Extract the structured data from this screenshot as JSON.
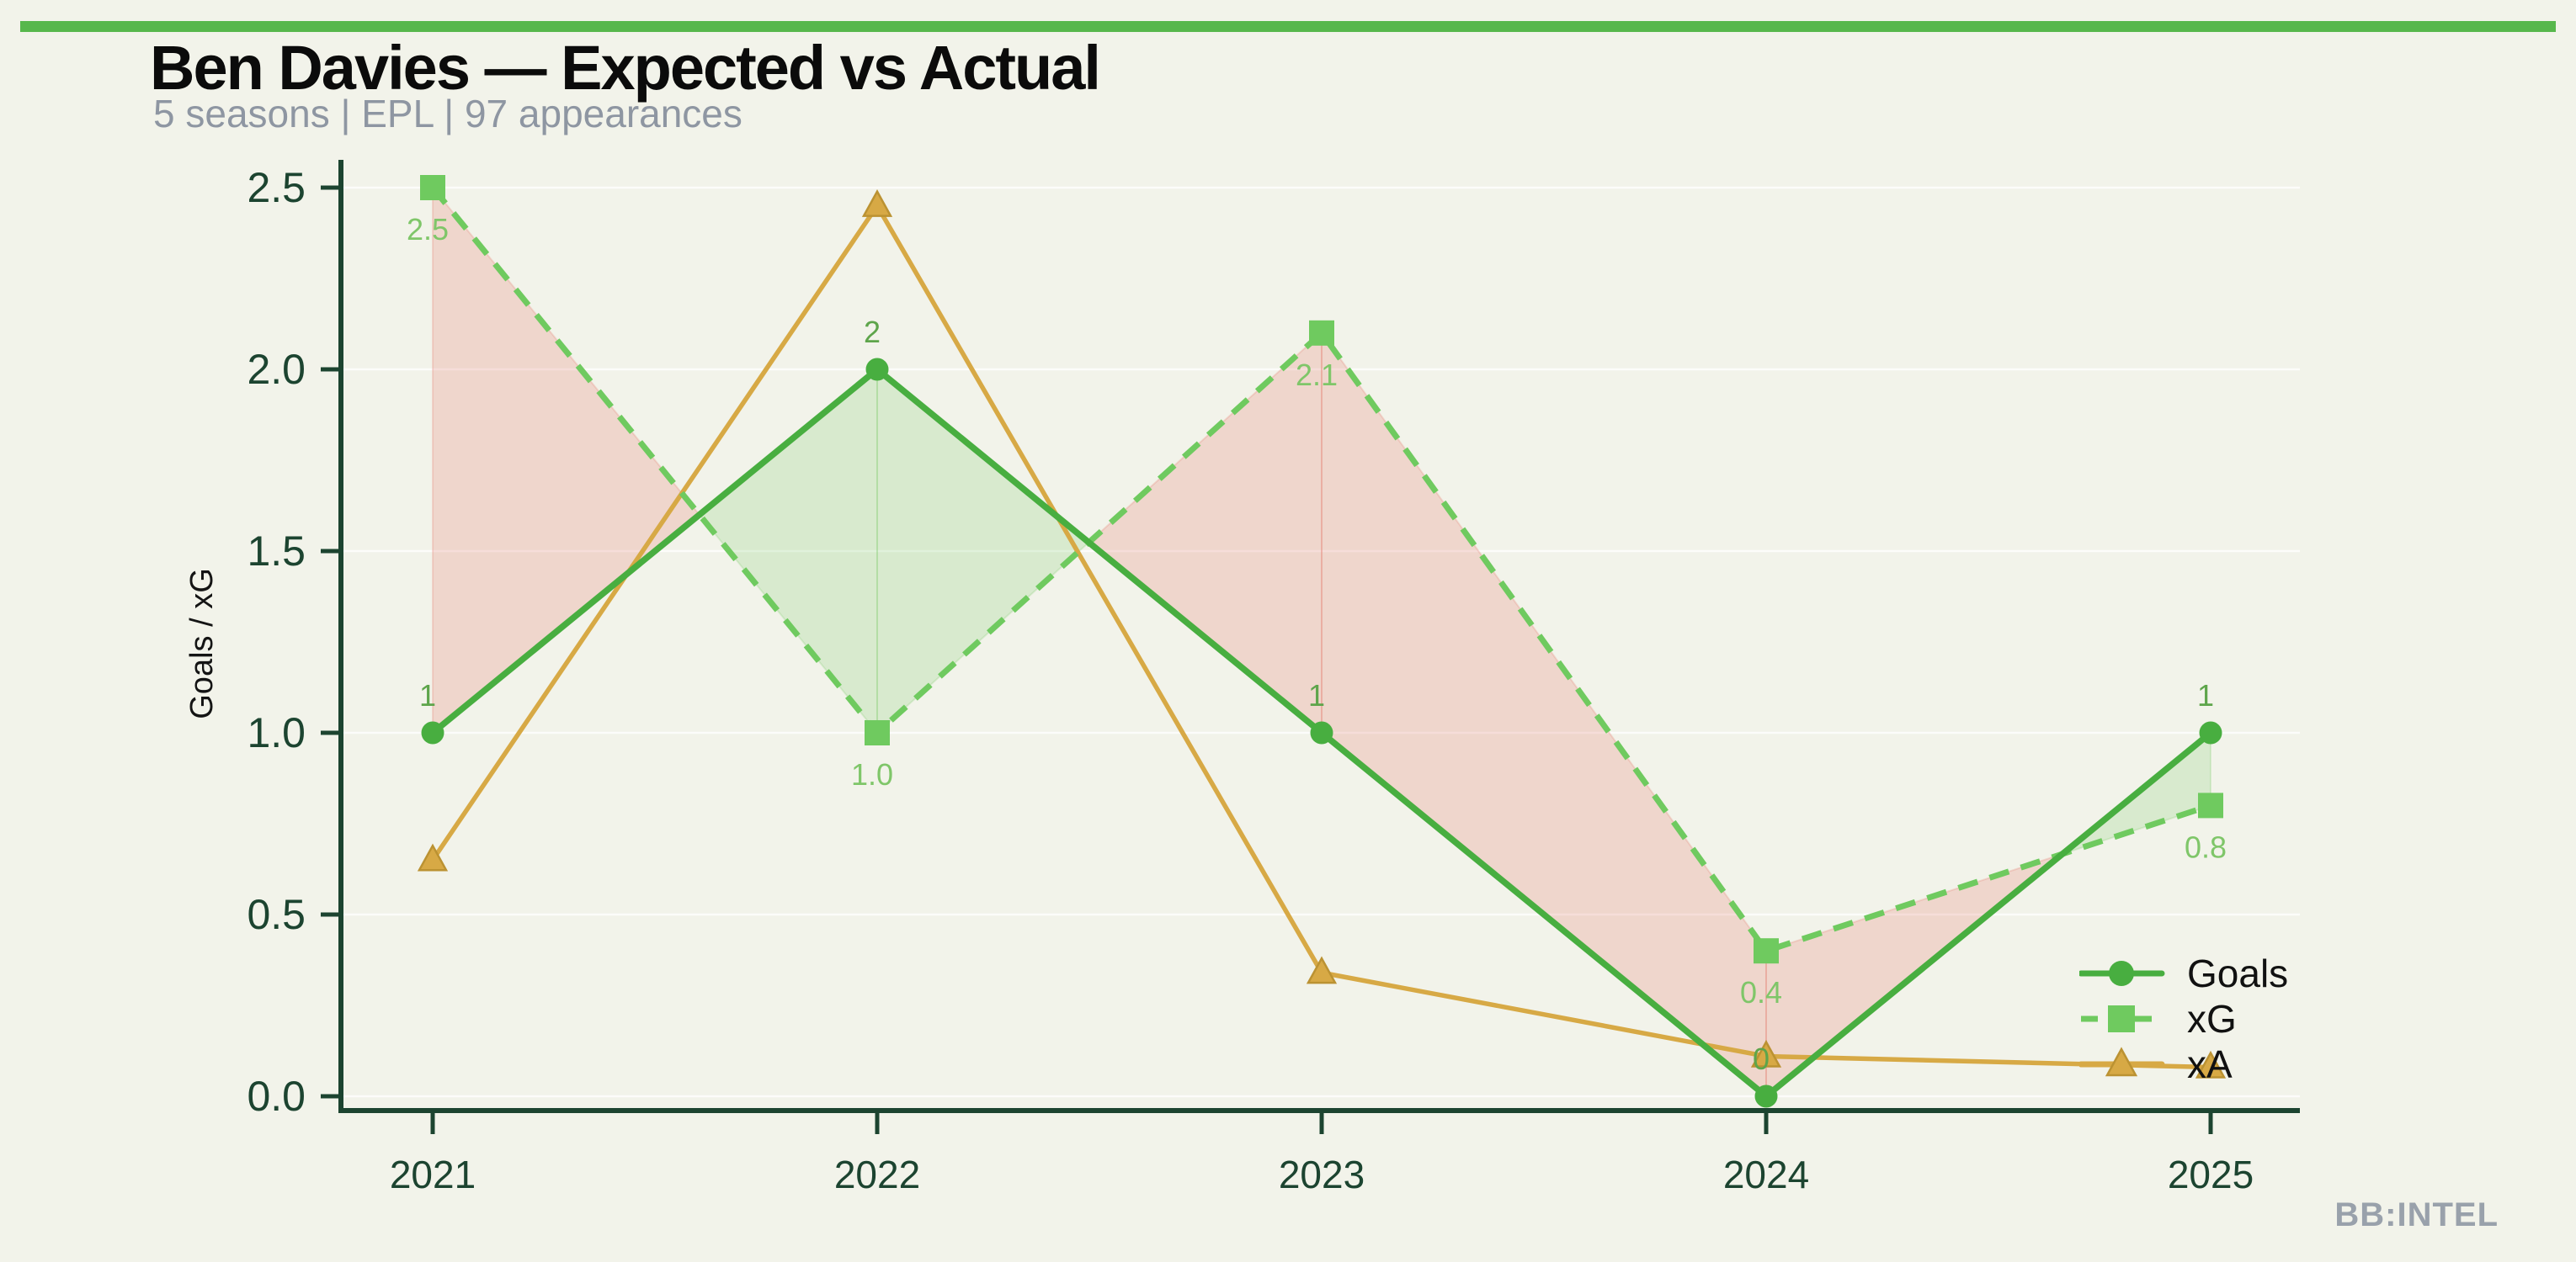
{
  "page": {
    "background": "#f2f3ea",
    "accent_bar_color": "#57b74c"
  },
  "header": {
    "title": "Ben Davies — Expected vs Actual",
    "subtitle": "5 seasons | EPL | 97 appearances"
  },
  "footer": {
    "brand": "BB:INTEL",
    "color": "#99a1ab"
  },
  "legend": {
    "position": "lower right",
    "items": [
      {
        "label": "Goals"
      },
      {
        "label": "xG"
      },
      {
        "label": "xA"
      }
    ]
  },
  "chart_data": {
    "type": "line",
    "title": "Ben Davies — Expected vs Actual",
    "subtitle": "5 seasons | EPL | 97 appearances",
    "x": [
      2021,
      2022,
      2023,
      2024,
      2025
    ],
    "xtick_labels": [
      "2021",
      "2022",
      "2023",
      "2024",
      "2025"
    ],
    "xlabel": "",
    "ylabel": "Goals / xG",
    "ylim": [
      0,
      2.5
    ],
    "yticks": [
      0.0,
      0.5,
      1.0,
      1.5,
      2.0,
      2.5
    ],
    "ytick_labels": [
      "0.0",
      "0.5",
      "1.0",
      "1.5",
      "2.0",
      "2.5"
    ],
    "grid": "horizontal-faint",
    "legend_position": "lower right",
    "axis_color": "#1c4430",
    "gridline_color": "rgba(255,255,255,0.75)",
    "ylabel_color": "#141414",
    "tick_label_color": "#1c4430",
    "series": [
      {
        "name": "Goals",
        "values": [
          1,
          2,
          1,
          0,
          1
        ],
        "point_labels": [
          "1",
          "2",
          "1",
          "0",
          "1"
        ],
        "label_position": "above",
        "label_color": "#5ea54b",
        "color": "#48ae40",
        "marker": "circle",
        "line_style": "solid",
        "line_width": 7.5
      },
      {
        "name": "xG",
        "values": [
          2.5,
          1.0,
          2.1,
          0.4,
          0.8
        ],
        "point_labels": [
          "2.5",
          "1.0",
          "2.1",
          "0.4",
          "0.8"
        ],
        "label_position": "below",
        "label_color": "#7fc669",
        "color": "#6fca5f",
        "marker": "square",
        "line_style": "dashed",
        "line_width": 7
      },
      {
        "name": "xA",
        "values": [
          0.65,
          2.45,
          0.34,
          0.11,
          0.08
        ],
        "point_labels": [],
        "label_position": "none",
        "label_color": "#c0942f",
        "color": "#d7a945",
        "marker": "triangle",
        "marker_edge": "#bb9232",
        "line_style": "solid",
        "line_width": 5.5
      }
    ],
    "fills": [
      {
        "name": "xG-above-Goals (underperformance)",
        "color": "rgba(228,112,98,0.22)"
      },
      {
        "name": "Goals-above-xG (overperformance)",
        "color": "rgba(116,199,95,0.20)"
      }
    ]
  }
}
